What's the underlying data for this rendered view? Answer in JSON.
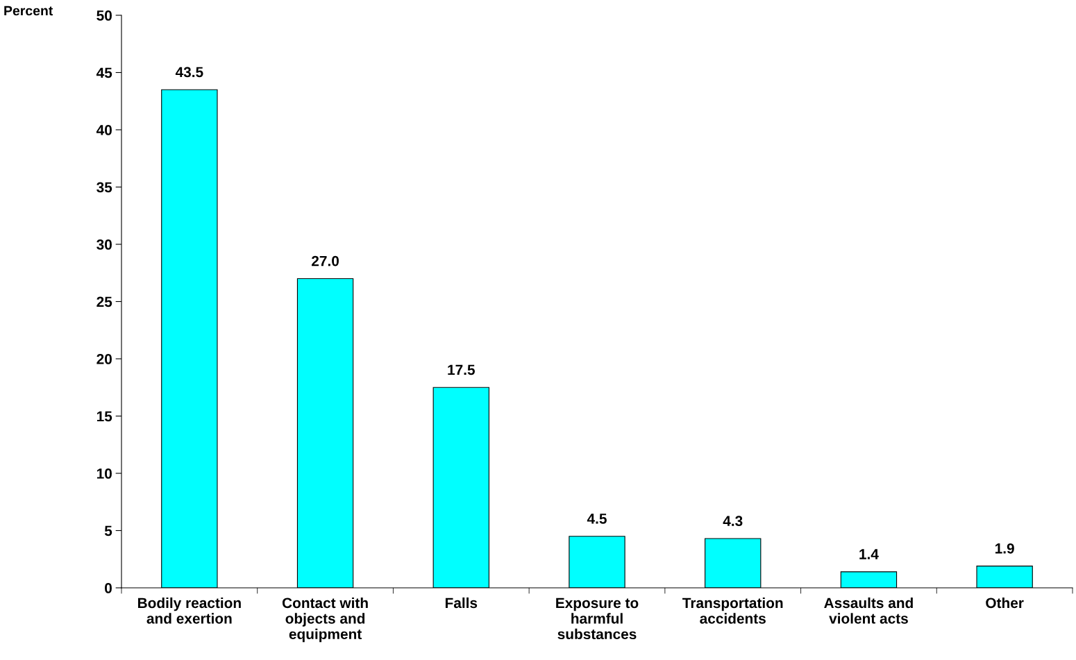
{
  "chart_data": {
    "type": "bar",
    "ylabel": "Percent",
    "categories": [
      "Bodily reaction\nand exertion",
      "Contact with\nobjects and\nequipment",
      "Falls",
      "Exposure to\nharmful\nsubstances",
      "Transportation\naccidents",
      "Assaults and\nviolent acts",
      "Other"
    ],
    "values": [
      43.5,
      27.0,
      17.5,
      4.5,
      4.3,
      1.4,
      1.9
    ],
    "value_labels": [
      "43.5",
      "27.0",
      "17.5",
      "4.5",
      "4.3",
      "1.4",
      "1.9"
    ],
    "color": "#00ffff",
    "ylim": [
      0,
      50
    ],
    "yticks": [
      0,
      5,
      10,
      15,
      20,
      25,
      30,
      35,
      40,
      45,
      50
    ],
    "grid": false
  }
}
